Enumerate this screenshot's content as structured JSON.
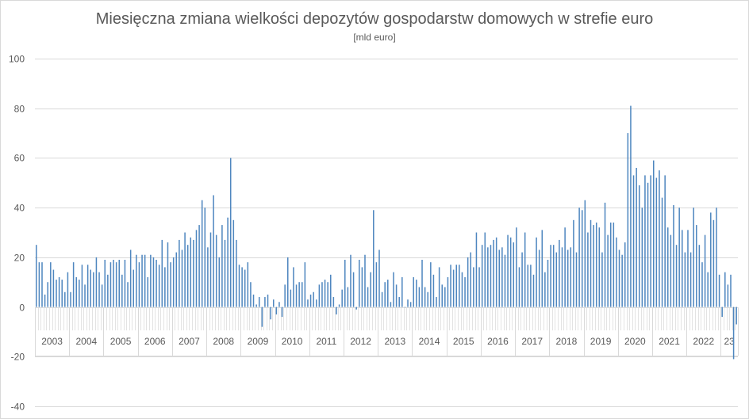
{
  "chart_data": {
    "type": "bar",
    "title": "Miesięczna zmiana wielkości depozytów gospodarstw domowych w strefie euro",
    "subtitle": "[mld euro]",
    "xlabel": "",
    "ylabel": "",
    "ylim": [
      -40,
      100
    ],
    "y_ticks": [
      100,
      80,
      60,
      40,
      20,
      0,
      -20,
      -40
    ],
    "grid": true,
    "legend": "none",
    "bar_color": "#4e86bf",
    "grid_color": "#d9d9d9",
    "year_labels": [
      "2003",
      "2004",
      "2005",
      "2006",
      "2007",
      "2008",
      "2009",
      "2010",
      "2011",
      "2012",
      "2013",
      "2014",
      "2015",
      "2016",
      "2017",
      "2018",
      "2019",
      "2020",
      "2021",
      "2022",
      "23"
    ],
    "series": [
      {
        "values": [
          25,
          18,
          18,
          5,
          10,
          18,
          15,
          11,
          12,
          11,
          6,
          14,
          6,
          18,
          12,
          11,
          17,
          9,
          17,
          15,
          14,
          20,
          14,
          9,
          19,
          13,
          18,
          19,
          18,
          19,
          13,
          19,
          10,
          23,
          15,
          21,
          18,
          21,
          21,
          12,
          21,
          20,
          19,
          17,
          27,
          16,
          26,
          18,
          20,
          22,
          27,
          23,
          30,
          25,
          28,
          27,
          31,
          33,
          43,
          40,
          24,
          30,
          45,
          29,
          20,
          33,
          27,
          36,
          60,
          35,
          27,
          17,
          16,
          15,
          18,
          10,
          5,
          1,
          4,
          -8,
          4,
          5,
          -5,
          3,
          -3,
          2,
          -4,
          9,
          20,
          7,
          16,
          9,
          10,
          10,
          18,
          3,
          5,
          6,
          3,
          9,
          10,
          11,
          10,
          13,
          4,
          -3,
          1,
          7,
          19,
          8,
          21,
          14,
          -1,
          19,
          16,
          21,
          8,
          14,
          39,
          18,
          23,
          6,
          10,
          11,
          2,
          14,
          9,
          4,
          12,
          0,
          3,
          2,
          12,
          11,
          8,
          19,
          8,
          6,
          18,
          13,
          4,
          16,
          9,
          8,
          12,
          17,
          15,
          17,
          17,
          14,
          12,
          20,
          22,
          16,
          30,
          16,
          25,
          30,
          24,
          25,
          27,
          28,
          23,
          24,
          21,
          29,
          28,
          26,
          32,
          16,
          22,
          30,
          17,
          17,
          13,
          28,
          23,
          31,
          14,
          19,
          25,
          25,
          22,
          27,
          24,
          32,
          23,
          24,
          35,
          22,
          40,
          39,
          43,
          30,
          35,
          33,
          34,
          32,
          22,
          42,
          29,
          34,
          34,
          28,
          23,
          21,
          26,
          70,
          81,
          53,
          56,
          49,
          40,
          53,
          50,
          53,
          59,
          52,
          55,
          44,
          53,
          32,
          29,
          41,
          25,
          40,
          31,
          22,
          31,
          22,
          40,
          33,
          25,
          18,
          29,
          14,
          38,
          35,
          40,
          13,
          -4,
          14,
          9,
          13,
          -21,
          -7
        ]
      }
    ]
  }
}
